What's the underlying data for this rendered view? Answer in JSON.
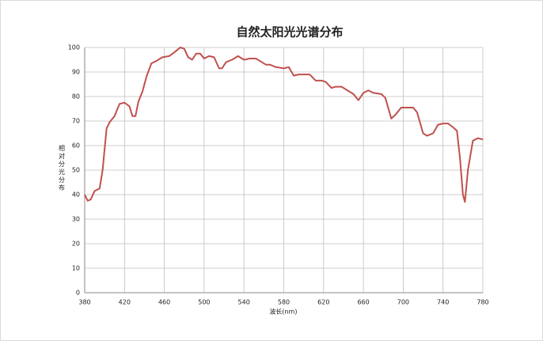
{
  "chart_data": {
    "type": "line",
    "title": "自然太阳光光谱分布",
    "x_label": "波长(nm)",
    "y_label": "相对分光分布",
    "x": [
      380,
      383,
      386,
      390,
      395,
      398,
      402,
      405,
      410,
      415,
      420,
      425,
      428,
      431,
      434,
      438,
      442,
      447,
      452,
      458,
      465,
      470,
      476,
      480,
      484,
      488,
      492,
      496,
      500,
      505,
      510,
      515,
      518,
      522,
      528,
      534,
      540,
      546,
      552,
      556,
      562,
      566,
      572,
      580,
      585,
      590,
      595,
      600,
      606,
      612,
      618,
      622,
      628,
      632,
      638,
      644,
      650,
      655,
      660,
      665,
      670,
      678,
      682,
      688,
      692,
      698,
      704,
      710,
      714,
      720,
      724,
      730,
      735,
      740,
      745,
      750,
      754,
      757,
      760,
      762,
      765,
      770,
      775,
      780
    ],
    "series": [
      {
        "name": "相对分光分布",
        "color": "#c0504d",
        "values": [
          40,
          37.5,
          38,
          41.5,
          42.5,
          50,
          67,
          69.5,
          72,
          77,
          77.5,
          76,
          72,
          72,
          78,
          82,
          88,
          93.5,
          94.5,
          96,
          96.5,
          98,
          100,
          99.5,
          96,
          95,
          97.5,
          97.5,
          95.5,
          96.5,
          96,
          91.5,
          91.5,
          94,
          95,
          96.5,
          95,
          95.5,
          95.5,
          94.5,
          93,
          93,
          92,
          91.5,
          92,
          88.5,
          89,
          89,
          89,
          86.5,
          86.5,
          86,
          83.5,
          84,
          84,
          82.5,
          81,
          78.5,
          81.5,
          82.5,
          81.5,
          81,
          79.5,
          71,
          72.5,
          75.5,
          75.5,
          75.5,
          73.5,
          65,
          64,
          65,
          68.5,
          69,
          69,
          67.5,
          66,
          55,
          40,
          37,
          50,
          62,
          63,
          62.5
        ]
      }
    ],
    "xlim": [
      380,
      780
    ],
    "xticks": [
      380,
      420,
      460,
      500,
      540,
      580,
      620,
      660,
      700,
      740,
      780
    ],
    "ylim": [
      0,
      100
    ],
    "yticks": [
      0,
      10,
      20,
      30,
      40,
      50,
      60,
      70,
      80,
      90,
      100
    ],
    "grid": true
  }
}
